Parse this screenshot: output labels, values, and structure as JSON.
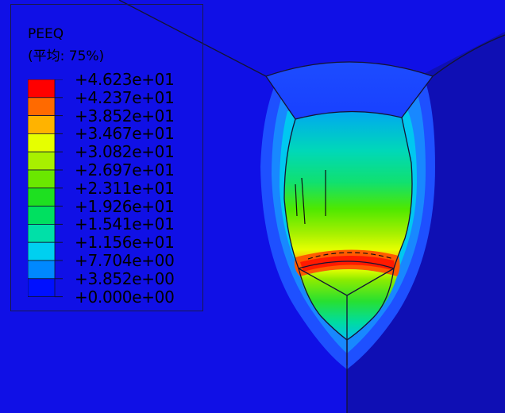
{
  "legend": {
    "variable": "PEEQ",
    "averaging": "(平均: 75%)",
    "labels": [
      "+4.623e+01",
      "+4.237e+01",
      "+3.852e+01",
      "+3.467e+01",
      "+3.082e+01",
      "+2.697e+01",
      "+2.311e+01",
      "+1.926e+01",
      "+1.541e+01",
      "+1.156e+01",
      "+7.704e+00",
      "+3.852e+00",
      "+0.000e+00"
    ],
    "colors": [
      "#ff0000",
      "#ff6a00",
      "#ffb300",
      "#e6ff00",
      "#a8f000",
      "#6ae800",
      "#1ee020",
      "#00e060",
      "#00e0a8",
      "#00d0f0",
      "#0088ff",
      "#0010ff"
    ]
  },
  "colors": {
    "background": "#1010e6",
    "dark_region": "#0f0fb4"
  }
}
